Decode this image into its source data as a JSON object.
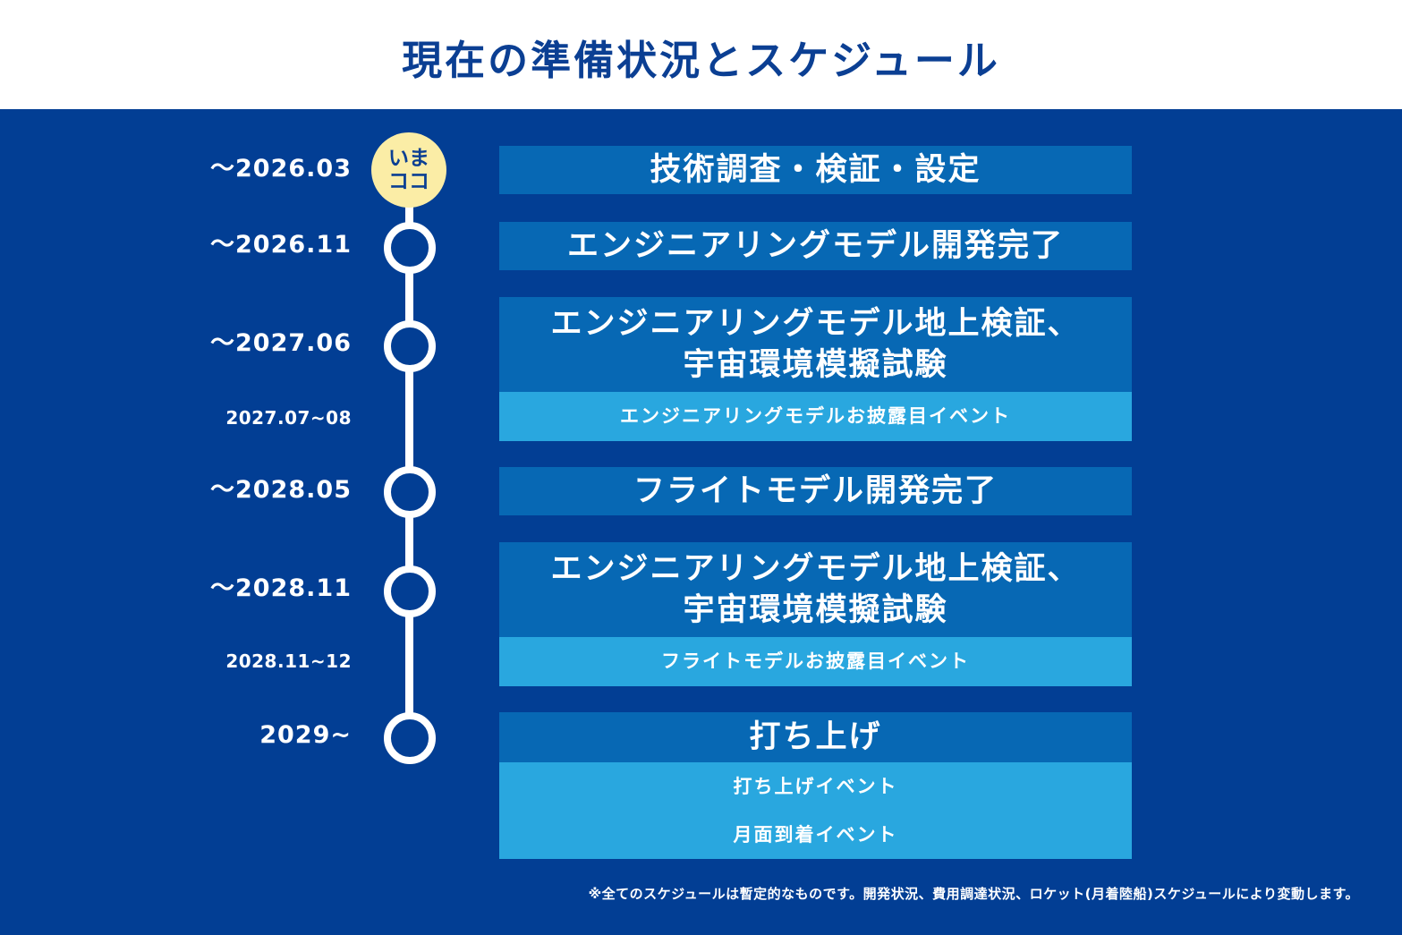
{
  "title": "現在の準備状況とスケジュール",
  "now_badge": {
    "line1": "いま",
    "line2": "ココ"
  },
  "milestones": [
    {
      "date": "〜2026.03",
      "label": "技術調査・検証・設定"
    },
    {
      "date": "〜2026.11",
      "label": "エンジニアリングモデル開発完了"
    },
    {
      "date": "〜2027.06",
      "label_line1": "エンジニアリングモデル地上検証、",
      "label_line2": "宇宙環境模擬試験"
    },
    {
      "date": "2027.07~08",
      "label": "エンジニアリングモデルお披露目イベント"
    },
    {
      "date": "〜2028.05",
      "label": "フライトモデル開発完了"
    },
    {
      "date": "〜2028.11",
      "label_line1": "エンジニアリングモデル地上検証、",
      "label_line2": "宇宙環境模擬試験"
    },
    {
      "date": "2028.11~12",
      "label": "フライトモデルお披露目イベント"
    },
    {
      "date": "2029~",
      "label": "打ち上げ",
      "events": [
        "打ち上げイベント",
        "月面到着イベント"
      ]
    }
  ],
  "footnote": "※全てのスケジュールは暫定的なものです。開発状況、費用調達状況、ロケット(月着陸船)スケジュールにより変動します。",
  "colors": {
    "background": "#023e94",
    "title": "#0b3f93",
    "main_box": "#0768b4",
    "sub_box": "#29a7df",
    "badge": "#fbeda6"
  }
}
